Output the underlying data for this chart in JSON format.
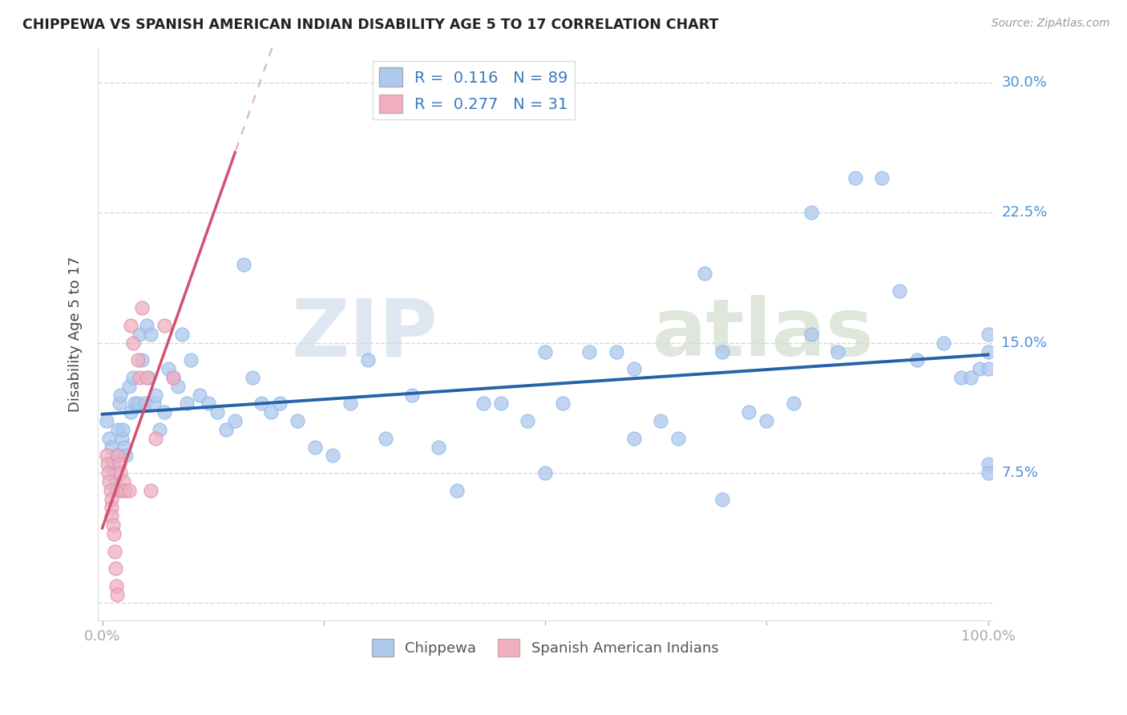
{
  "title": "CHIPPEWA VS SPANISH AMERICAN INDIAN DISABILITY AGE 5 TO 17 CORRELATION CHART",
  "source": "Source: ZipAtlas.com",
  "ylabel": "Disability Age 5 to 17",
  "xlim": [
    -0.005,
    1.005
  ],
  "ylim": [
    -0.01,
    0.32
  ],
  "yticks": [
    0.0,
    0.075,
    0.15,
    0.225,
    0.3
  ],
  "ytick_labels": [
    "",
    "7.5%",
    "15.0%",
    "22.5%",
    "30.0%"
  ],
  "xticks": [
    0.0,
    0.25,
    0.5,
    0.75,
    1.0
  ],
  "xtick_labels": [
    "0.0%",
    "",
    "",
    "",
    "100.0%"
  ],
  "chippewa_color": "#adc8ed",
  "spanish_color": "#f0afc0",
  "trend_chippewa_color": "#2563a8",
  "trend_spanish_color": "#d45070",
  "trend_diag_color": "#d8d0d0",
  "watermark_zip": "ZIP",
  "watermark_atlas": "atlas",
  "chippewa_R": 0.116,
  "chippewa_N": 89,
  "spanish_R": 0.277,
  "spanish_N": 31,
  "chippewa_x": [
    0.005,
    0.008,
    0.01,
    0.012,
    0.014,
    0.015,
    0.016,
    0.017,
    0.018,
    0.019,
    0.02,
    0.022,
    0.023,
    0.025,
    0.027,
    0.03,
    0.032,
    0.035,
    0.037,
    0.04,
    0.042,
    0.045,
    0.048,
    0.05,
    0.052,
    0.055,
    0.058,
    0.06,
    0.065,
    0.07,
    0.075,
    0.08,
    0.085,
    0.09,
    0.095,
    0.1,
    0.11,
    0.12,
    0.13,
    0.14,
    0.15,
    0.16,
    0.17,
    0.18,
    0.19,
    0.2,
    0.22,
    0.24,
    0.26,
    0.28,
    0.3,
    0.32,
    0.35,
    0.38,
    0.4,
    0.43,
    0.45,
    0.48,
    0.5,
    0.52,
    0.55,
    0.58,
    0.6,
    0.63,
    0.65,
    0.68,
    0.7,
    0.73,
    0.75,
    0.78,
    0.8,
    0.83,
    0.85,
    0.88,
    0.9,
    0.92,
    0.95,
    0.97,
    0.98,
    0.99,
    1.0,
    1.0,
    1.0,
    1.0,
    1.0,
    0.5,
    0.6,
    0.7,
    0.8
  ],
  "chippewa_y": [
    0.105,
    0.095,
    0.09,
    0.08,
    0.075,
    0.07,
    0.065,
    0.085,
    0.1,
    0.115,
    0.12,
    0.095,
    0.1,
    0.09,
    0.085,
    0.125,
    0.11,
    0.13,
    0.115,
    0.115,
    0.155,
    0.14,
    0.115,
    0.16,
    0.13,
    0.155,
    0.115,
    0.12,
    0.1,
    0.11,
    0.135,
    0.13,
    0.125,
    0.155,
    0.115,
    0.14,
    0.12,
    0.115,
    0.11,
    0.1,
    0.105,
    0.195,
    0.13,
    0.115,
    0.11,
    0.115,
    0.105,
    0.09,
    0.085,
    0.115,
    0.14,
    0.095,
    0.12,
    0.09,
    0.065,
    0.115,
    0.115,
    0.105,
    0.145,
    0.115,
    0.145,
    0.145,
    0.095,
    0.105,
    0.095,
    0.19,
    0.145,
    0.11,
    0.105,
    0.115,
    0.155,
    0.145,
    0.245,
    0.245,
    0.18,
    0.14,
    0.15,
    0.13,
    0.13,
    0.135,
    0.135,
    0.155,
    0.08,
    0.145,
    0.075,
    0.075,
    0.135,
    0.06,
    0.225
  ],
  "spanish_x": [
    0.005,
    0.006,
    0.007,
    0.008,
    0.009,
    0.01,
    0.01,
    0.01,
    0.012,
    0.013,
    0.014,
    0.015,
    0.016,
    0.017,
    0.018,
    0.019,
    0.02,
    0.022,
    0.024,
    0.026,
    0.03,
    0.032,
    0.035,
    0.04,
    0.042,
    0.045,
    0.05,
    0.055,
    0.06,
    0.07,
    0.08
  ],
  "spanish_y": [
    0.085,
    0.08,
    0.075,
    0.07,
    0.065,
    0.06,
    0.055,
    0.05,
    0.045,
    0.04,
    0.03,
    0.02,
    0.01,
    0.005,
    0.085,
    0.08,
    0.075,
    0.065,
    0.07,
    0.065,
    0.065,
    0.16,
    0.15,
    0.14,
    0.13,
    0.17,
    0.13,
    0.065,
    0.095,
    0.16,
    0.13
  ]
}
